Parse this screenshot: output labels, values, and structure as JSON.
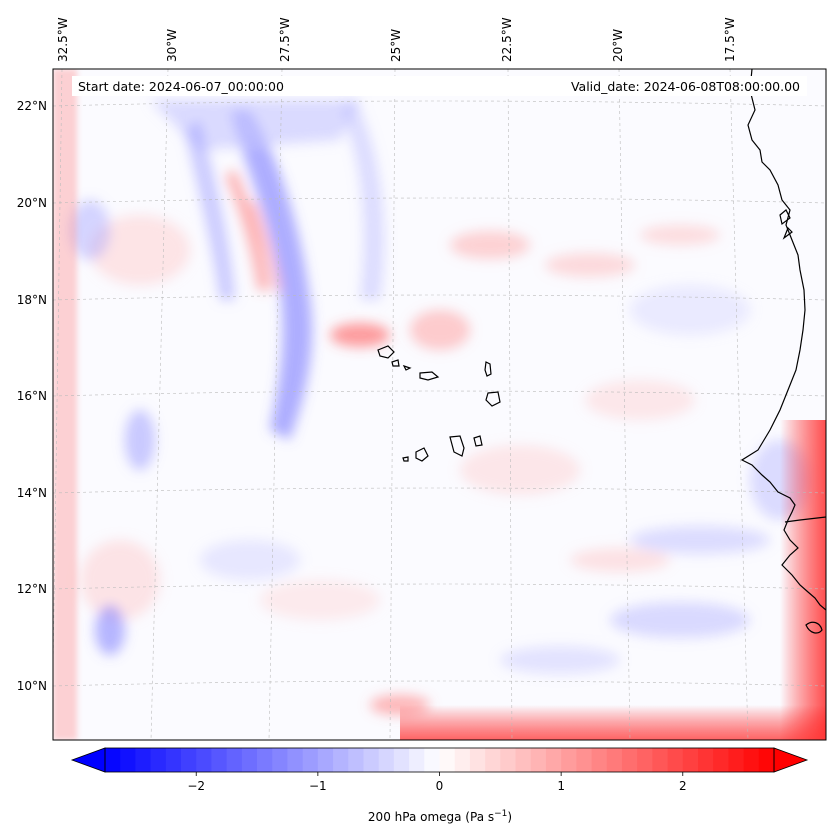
{
  "header": {
    "start_label": "Start date: 2024-06-07_00:00:00",
    "valid_label": "Valid_date: 2024-06-08T08:00:00.00"
  },
  "map": {
    "lon_ticks": [
      "32.5°W",
      "30°W",
      "27.5°W",
      "25°W",
      "22.5°W",
      "20°W",
      "17.5°W"
    ],
    "lat_ticks": [
      "22°N",
      "20°N",
      "18°N",
      "16°N",
      "14°N",
      "12°N",
      "10°N"
    ],
    "colors": {
      "negative": "#0000ff",
      "zero": "#ffffff",
      "positive": "#ff0000",
      "coast": "#000000",
      "grid": "#bbbbbb"
    }
  },
  "colorbar": {
    "min": -2.75,
    "max": 2.75,
    "ticks": [
      -2,
      -1,
      0,
      1,
      2
    ],
    "tick_labels": [
      "−2",
      "−1",
      "0",
      "1",
      "2"
    ],
    "label": "200 hPa omega (Pa s",
    "label_sup": "−1",
    "label_end": ")"
  }
}
